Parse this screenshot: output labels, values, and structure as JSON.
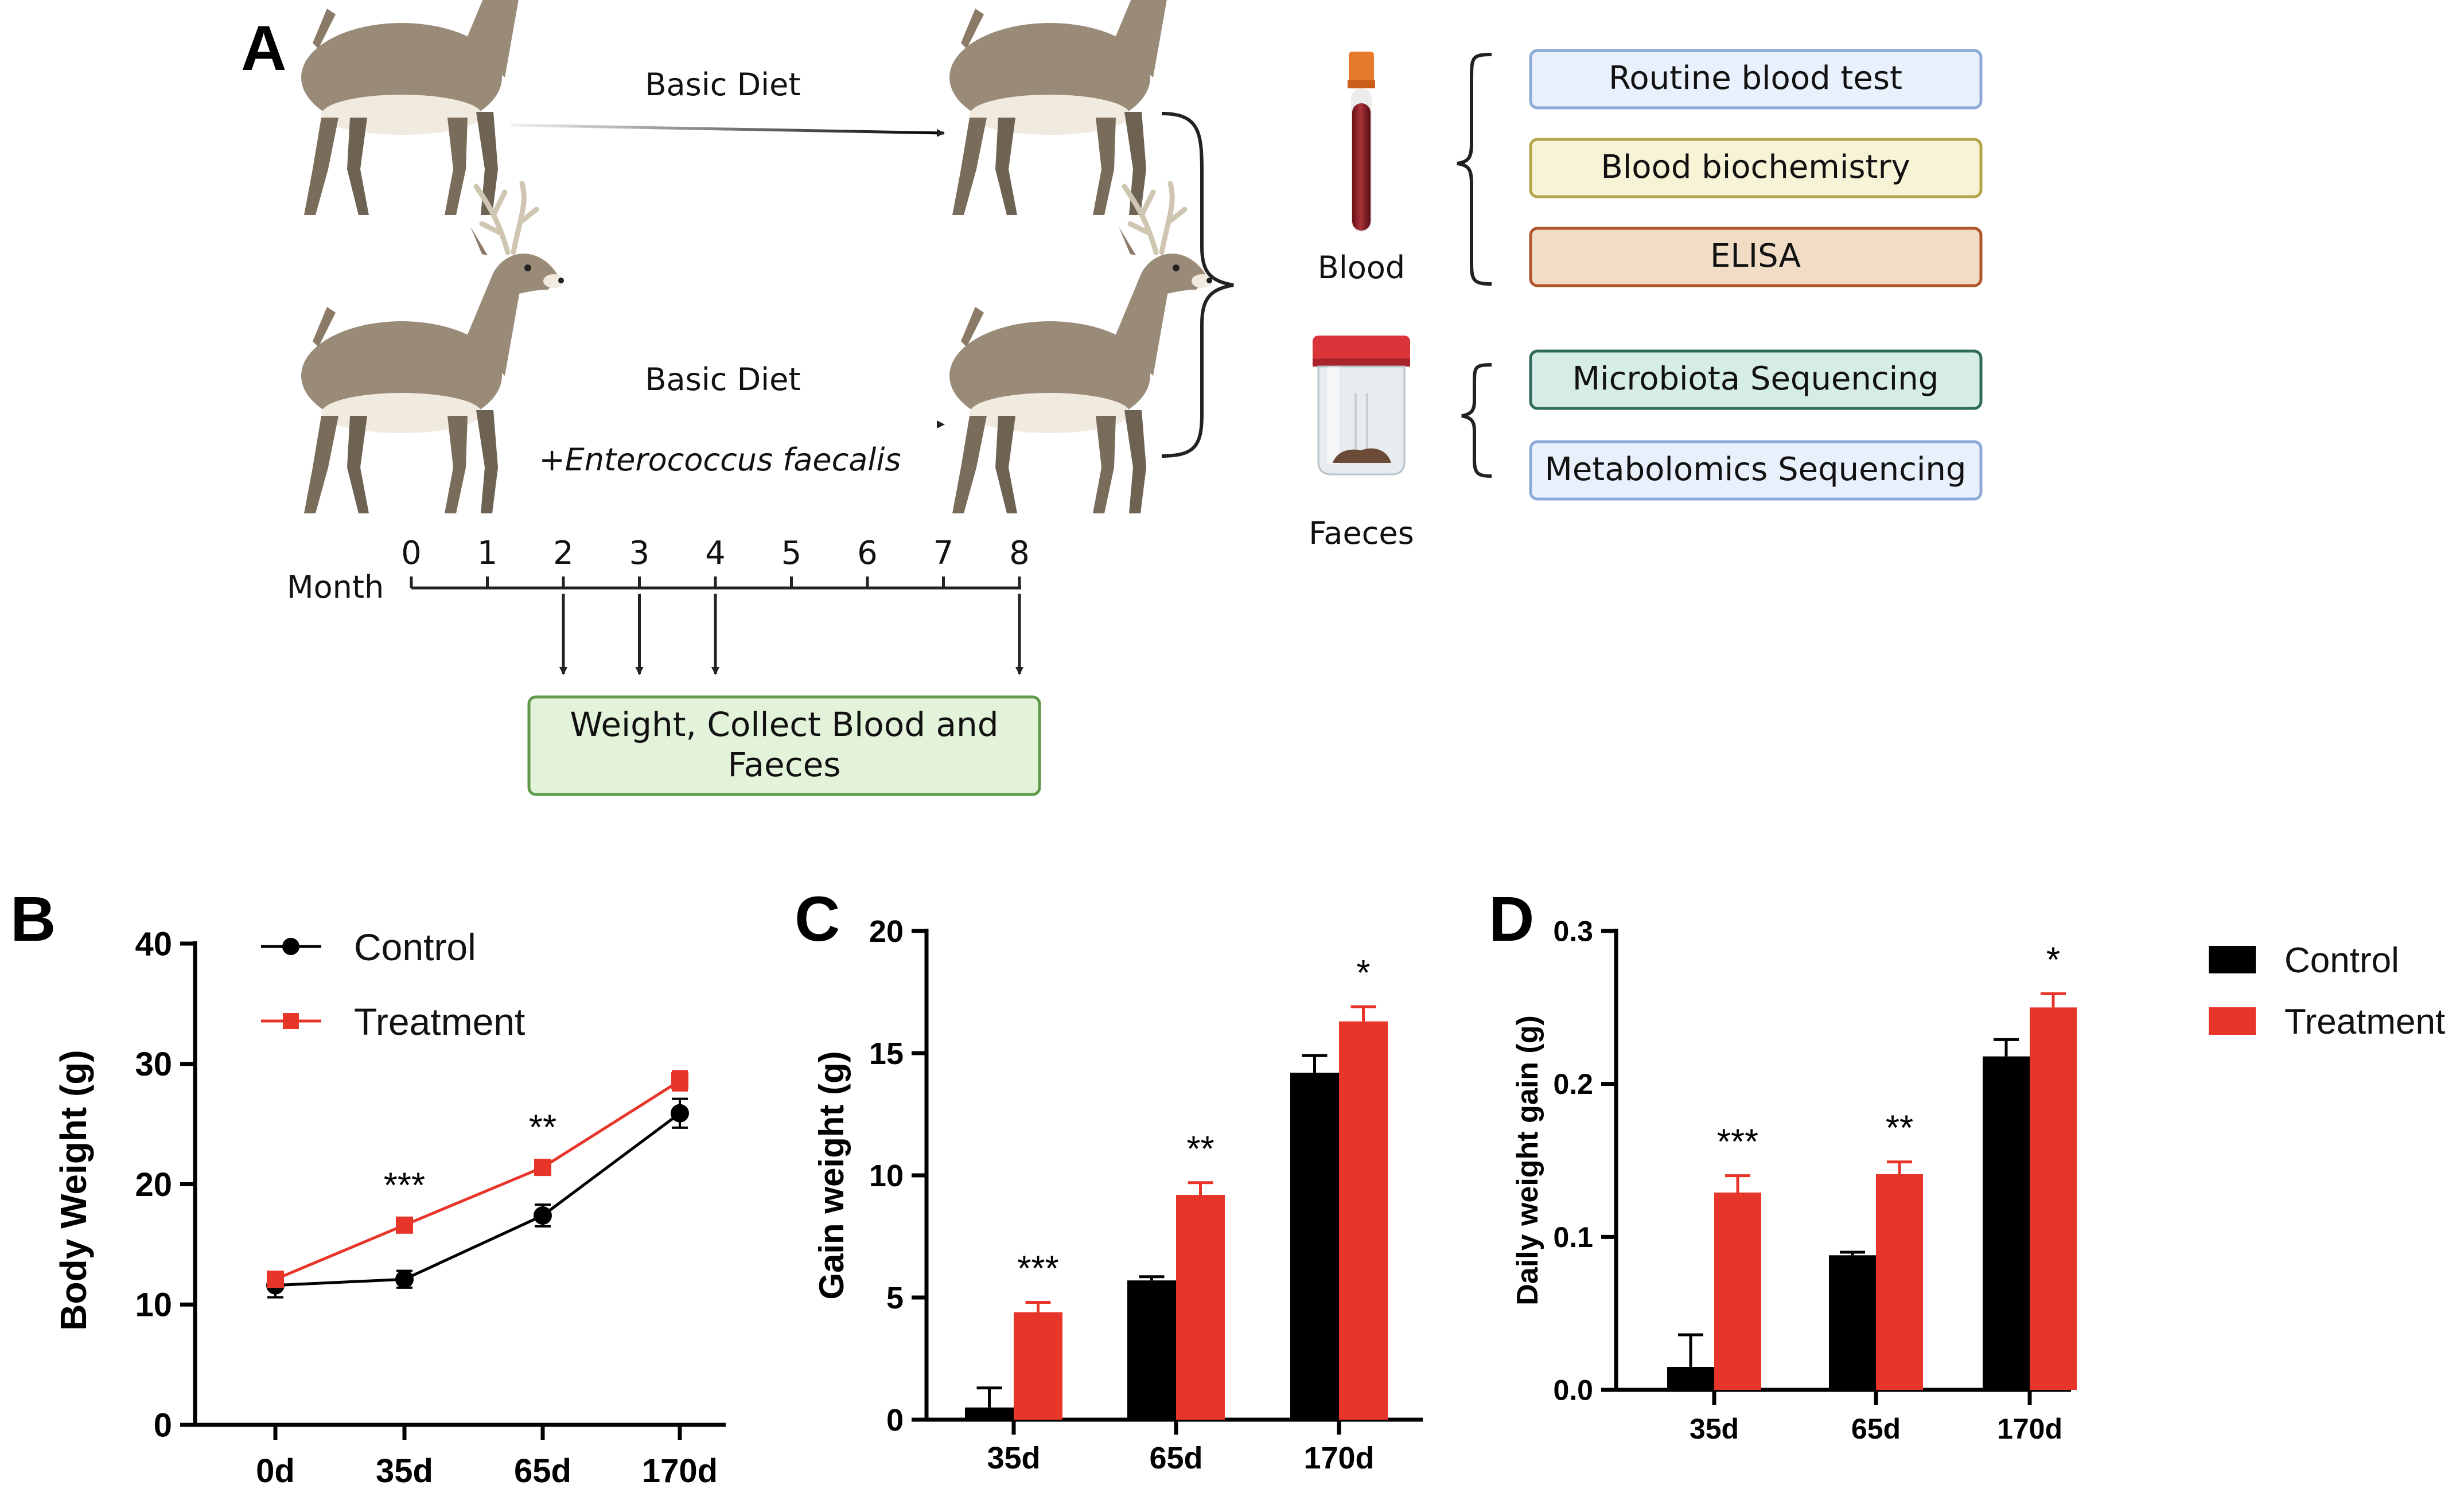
{
  "panelA": {
    "label": "A",
    "group1": {
      "diet": "Basic Diet"
    },
    "group2": {
      "diet": "Basic Diet",
      "supplement": "+Enterococcus faecalis"
    },
    "timeline": {
      "axis_label": "Month",
      "ticks": [
        "0",
        "1",
        "2",
        "3",
        "4",
        "5",
        "6",
        "7",
        "8"
      ],
      "collect_box": [
        "Weight, Collect Blood and",
        "Faeces"
      ]
    },
    "samples": {
      "blood": {
        "label": "Blood",
        "tests": [
          "Routine blood test",
          "Blood biochemistry",
          "ELISA"
        ]
      },
      "faeces": {
        "label": "Faeces",
        "tests": [
          "Microbiota Sequencing",
          "Metabolomics Sequencing"
        ]
      }
    },
    "colors": {
      "deer_body": "#9a8a78",
      "deer_belly": "#f1eadf",
      "deer_legs": "#6e6253",
      "test_boxes": [
        {
          "fill": "#e8f0fb",
          "stroke": "#8da9d8"
        },
        {
          "fill": "#f7f3d6",
          "stroke": "#b3a64a"
        },
        {
          "fill": "#f1dcc6",
          "stroke": "#b0552a"
        },
        {
          "fill": "#d6ece6",
          "stroke": "#2f6b5b"
        },
        {
          "fill": "#e8f0fb",
          "stroke": "#8da9d8"
        }
      ],
      "collect_box": {
        "fill": "#e3f3da",
        "stroke": "#5e9a4a"
      }
    }
  },
  "chart_data": [
    {
      "panel": "B",
      "type": "line",
      "ylabel": "Body Weight (g)",
      "categories": [
        "0d",
        "35d",
        "65d",
        "170d"
      ],
      "ylim": [
        0,
        40
      ],
      "yticks": [
        "0",
        "10",
        "20",
        "30",
        "40"
      ],
      "legend": "top-left",
      "series": [
        {
          "name": "Control",
          "color": "#000000",
          "marker": "circle",
          "values": [
            11.6,
            12.1,
            17.4,
            25.9
          ],
          "errors": [
            1.0,
            0.7,
            0.9,
            1.2
          ]
        },
        {
          "name": "Treatment",
          "color": "#e8352a",
          "marker": "square",
          "values": [
            12.1,
            16.6,
            21.4,
            28.6
          ],
          "errors": [
            0.6,
            0.4,
            0.4,
            0.8
          ]
        }
      ],
      "annotations": [
        {
          "x": "35d",
          "text": "***"
        },
        {
          "x": "65d",
          "text": "**"
        }
      ]
    },
    {
      "panel": "C",
      "type": "bar",
      "ylabel": "Gain weight (g)",
      "categories": [
        "35d",
        "65d",
        "170d"
      ],
      "ylim": [
        0,
        20
      ],
      "yticks": [
        "0",
        "5",
        "10",
        "15",
        "20"
      ],
      "series": [
        {
          "name": "Control",
          "color": "#000000",
          "values": [
            0.5,
            5.7,
            14.2
          ],
          "errors": [
            0.8,
            0.15,
            0.7
          ]
        },
        {
          "name": "Treatment",
          "color": "#e8352a",
          "values": [
            4.4,
            9.2,
            16.3
          ],
          "errors": [
            0.4,
            0.5,
            0.6
          ]
        }
      ],
      "annotations": [
        "***",
        "**",
        "*"
      ]
    },
    {
      "panel": "D",
      "type": "bar",
      "ylabel": "Daily weight gain (g)",
      "categories": [
        "35d",
        "65d",
        "170d"
      ],
      "ylim": [
        0,
        0.3
      ],
      "yticks": [
        "0.0",
        "0.1",
        "0.2",
        "0.3"
      ],
      "legend": "right",
      "series": [
        {
          "name": "Control",
          "color": "#000000",
          "values": [
            0.015,
            0.088,
            0.218
          ],
          "errors": [
            0.021,
            0.002,
            0.011
          ]
        },
        {
          "name": "Treatment",
          "color": "#e8352a",
          "values": [
            0.129,
            0.141,
            0.25
          ],
          "errors": [
            0.011,
            0.008,
            0.009
          ]
        }
      ],
      "annotations": [
        "***",
        "**",
        "*"
      ]
    }
  ]
}
